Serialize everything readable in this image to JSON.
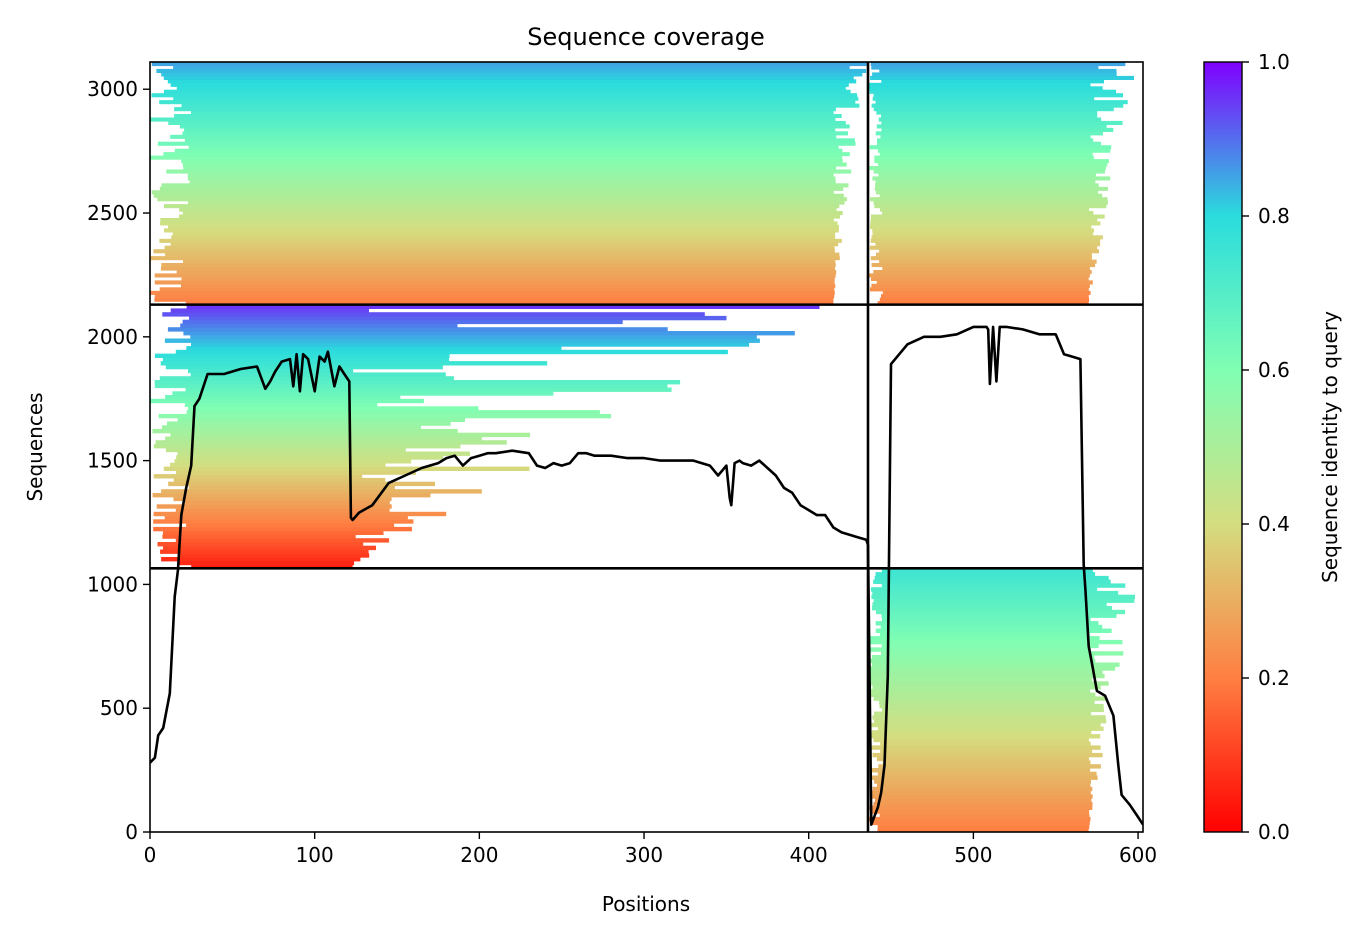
{
  "chart_data": {
    "type": "heatmap",
    "title": "Sequence coverage",
    "xlabel": "Positions",
    "ylabel": "Sequences",
    "xlim": [
      0,
      603
    ],
    "ylim": [
      0,
      3110
    ],
    "xticks": [
      0,
      100,
      200,
      300,
      400,
      500,
      600
    ],
    "yticks": [
      0,
      500,
      1000,
      1500,
      2000,
      2500,
      3000
    ],
    "colorbar": {
      "label": "Sequence identity to query",
      "range": [
        0.0,
        1.0
      ],
      "ticks": [
        "0.0",
        "0.2",
        "0.4",
        "0.6",
        "0.8",
        "1.0"
      ],
      "colormap": "rainbow_r",
      "colors": [
        "#ff0000",
        "#ff7f42",
        "#d4dd80",
        "#80feb3",
        "#2adcdd",
        "#8000ff"
      ]
    },
    "segment_boundaries": {
      "position": 436,
      "sequences": [
        1065,
        2130
      ]
    },
    "blocks": [
      {
        "name": "block-1",
        "x": [
          0,
          436
        ],
        "y": [
          1065,
          2130
        ],
        "core_x": [
          25,
          123
        ],
        "identity_range": [
          0.05,
          0.95
        ]
      },
      {
        "name": "block-2",
        "x": [
          0,
          436
        ],
        "y": [
          2130,
          3110
        ],
        "core_x": [
          25,
          415
        ],
        "identity_range": [
          0.2,
          0.85
        ]
      },
      {
        "name": "block-3",
        "x": [
          436,
          603
        ],
        "y": [
          0,
          1065
        ],
        "core_x": [
          445,
          570
        ],
        "identity_range": [
          0.2,
          0.75
        ]
      },
      {
        "name": "block-4",
        "x": [
          436,
          603
        ],
        "y": [
          2130,
          3110
        ],
        "core_x": [
          445,
          570
        ],
        "identity_range": [
          0.2,
          0.85
        ]
      }
    ],
    "coverage_line": {
      "name": "coverage",
      "x": [
        0,
        3,
        5,
        8,
        12,
        15,
        17,
        19,
        22,
        25,
        27,
        30,
        35,
        45,
        55,
        65,
        70,
        73,
        76,
        80,
        85,
        87,
        89,
        91,
        93,
        96,
        100,
        103,
        106,
        108,
        112,
        115,
        118,
        121,
        122,
        123,
        127,
        135,
        145,
        155,
        165,
        175,
        180,
        185,
        190,
        195,
        200,
        205,
        210,
        220,
        230,
        235,
        240,
        245,
        250,
        255,
        260,
        265,
        270,
        280,
        290,
        300,
        310,
        320,
        330,
        340,
        345,
        350,
        352,
        353,
        355,
        358,
        360,
        365,
        370,
        375,
        380,
        385,
        390,
        395,
        400,
        405,
        410,
        415,
        420,
        425,
        430,
        435,
        436,
        438,
        442,
        444,
        446,
        448,
        450,
        460,
        470,
        480,
        490,
        500,
        505,
        508,
        509,
        510,
        512,
        514,
        516,
        520,
        530,
        540,
        550,
        555,
        560,
        565,
        567,
        568,
        570,
        572,
        575,
        580,
        585,
        588,
        590,
        595,
        600,
        603
      ],
      "y": [
        280,
        300,
        390,
        420,
        560,
        950,
        1060,
        1280,
        1390,
        1480,
        1720,
        1750,
        1850,
        1850,
        1870,
        1880,
        1790,
        1820,
        1860,
        1900,
        1910,
        1800,
        1930,
        1780,
        1930,
        1910,
        1780,
        1920,
        1900,
        1940,
        1800,
        1880,
        1850,
        1820,
        1270,
        1260,
        1290,
        1320,
        1410,
        1440,
        1470,
        1490,
        1510,
        1520,
        1480,
        1510,
        1520,
        1530,
        1530,
        1540,
        1530,
        1480,
        1470,
        1490,
        1480,
        1490,
        1530,
        1530,
        1520,
        1520,
        1510,
        1510,
        1500,
        1500,
        1500,
        1480,
        1440,
        1480,
        1350,
        1320,
        1490,
        1500,
        1490,
        1480,
        1500,
        1470,
        1440,
        1390,
        1370,
        1320,
        1300,
        1280,
        1280,
        1230,
        1210,
        1200,
        1190,
        1180,
        1160,
        30,
        100,
        160,
        270,
        630,
        1890,
        1970,
        2000,
        2000,
        2010,
        2040,
        2040,
        2040,
        2030,
        1810,
        2040,
        1820,
        2040,
        2040,
        2030,
        2010,
        2010,
        1930,
        1920,
        1910,
        1080,
        980,
        750,
        680,
        570,
        550,
        470,
        270,
        150,
        110,
        60,
        30
      ]
    }
  }
}
